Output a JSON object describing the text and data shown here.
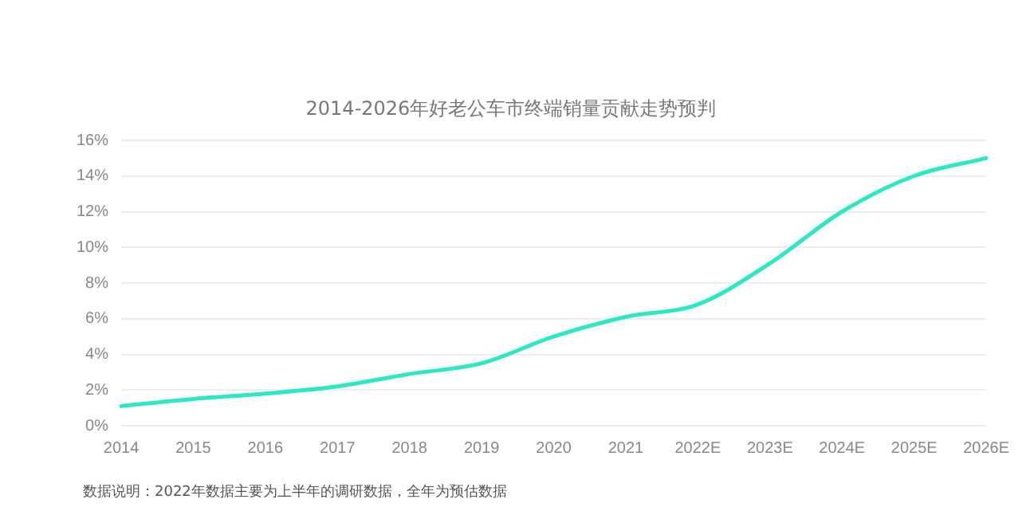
{
  "chart_data": {
    "type": "line",
    "title": "2014-2026年好老公车市终端销量贡献走势预判",
    "categories": [
      "2014",
      "2015",
      "2016",
      "2017",
      "2018",
      "2019",
      "2020",
      "2021",
      "2022E",
      "2023E",
      "2024E",
      "2025E",
      "2026E"
    ],
    "series": [
      {
        "color": "#2ee8c4",
        "values": [
          1.1,
          1.5,
          1.8,
          2.2,
          2.9,
          3.5,
          5.0,
          6.1,
          6.8,
          9.1,
          12.0,
          14.0,
          15.0
        ]
      }
    ],
    "ylim": [
      0,
      16
    ],
    "yticks": [
      {
        "value": 0,
        "label": "0%"
      },
      {
        "value": 2,
        "label": "2%"
      },
      {
        "value": 4,
        "label": "4%"
      },
      {
        "value": 6,
        "label": "6%"
      },
      {
        "value": 8,
        "label": "8%"
      },
      {
        "value": 10,
        "label": "10%"
      },
      {
        "value": 12,
        "label": "12%"
      },
      {
        "value": 14,
        "label": "14%"
      },
      {
        "value": 16,
        "label": "16%"
      }
    ],
    "grid": "y",
    "legend": false,
    "marker": "none",
    "line_style": "solid",
    "annotations": [
      "数据说明：2022年数据主要为上半年的调研数据，全年为预估数据"
    ]
  }
}
